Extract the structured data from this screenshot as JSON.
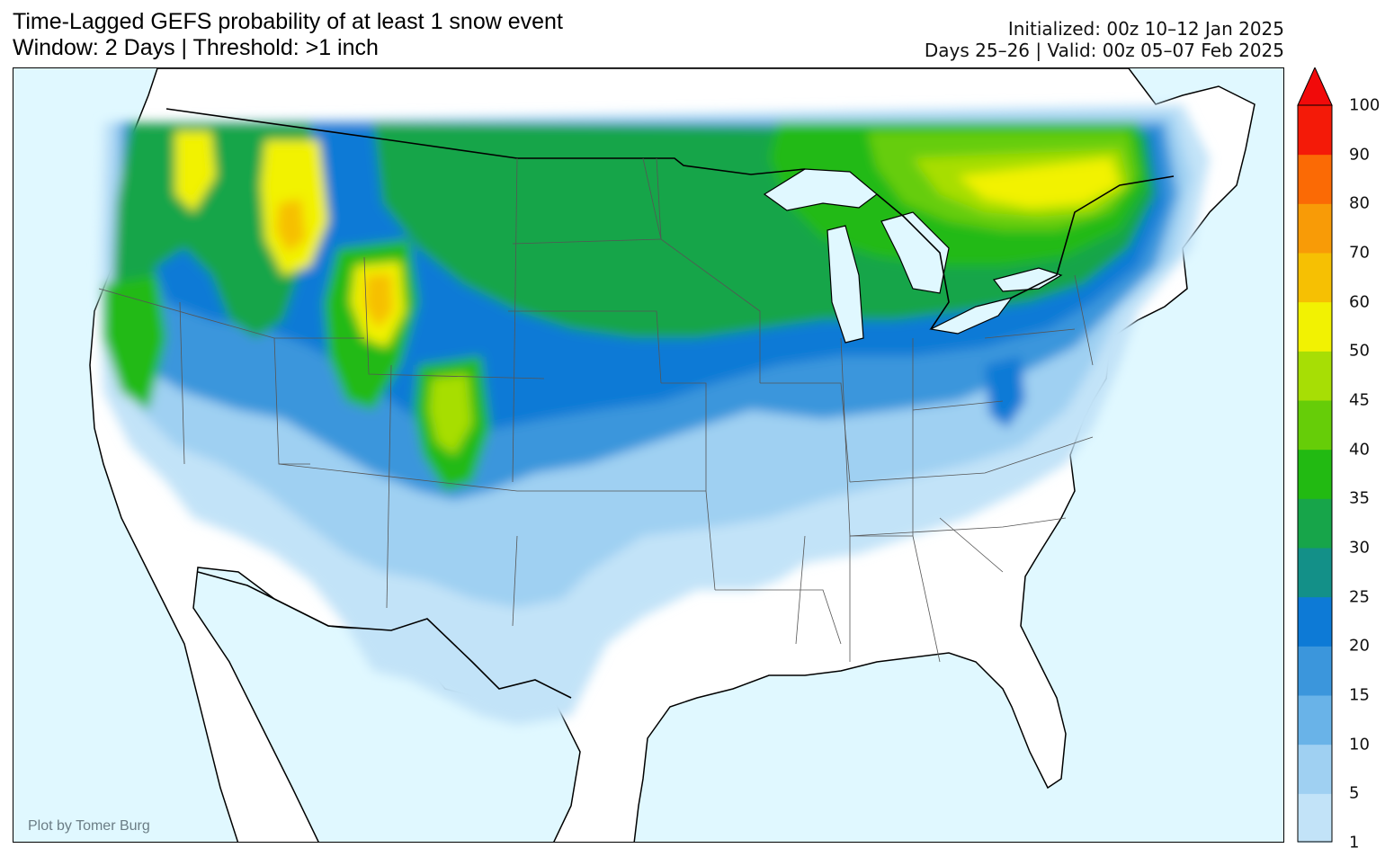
{
  "header": {
    "title_line1": "Time-Lagged GEFS probability of at least 1 snow event",
    "title_line2": "Window: 2 Days | Threshold: >1 inch",
    "init_line": "Initialized: 00z 10–12 Jan 2025",
    "valid_line": "Days 25–26 | Valid: 00z 05–07 Feb 2025"
  },
  "credit": "Plot by Tomer Burg",
  "colorbar": {
    "ticks": [
      "1",
      "5",
      "10",
      "15",
      "20",
      "25",
      "30",
      "35",
      "40",
      "45",
      "50",
      "60",
      "70",
      "80",
      "90",
      "100"
    ],
    "colors": [
      "#c2e3f8",
      "#9fd0f2",
      "#69b3e8",
      "#3b96dc",
      "#0d7ad6",
      "#139088",
      "#17a54a",
      "#22ba12",
      "#66cd08",
      "#a7de05",
      "#f2f202",
      "#f6c003",
      "#f89b07",
      "#fb6a05",
      "#f41a08"
    ],
    "extend_color": "#f10a0a"
  },
  "map_colors": {
    "ocean": "#e0f8ff",
    "land": "#ffffff"
  }
}
